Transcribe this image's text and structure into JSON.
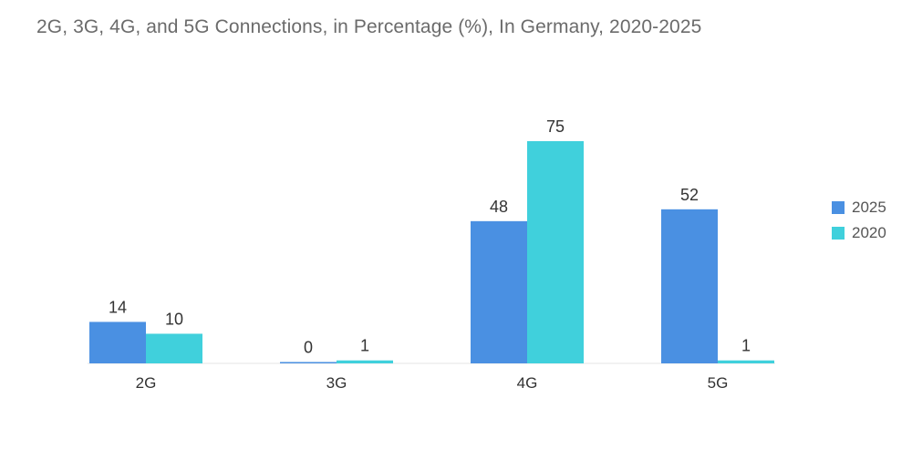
{
  "title": "2G, 3G, 4G, and 5G Connections, in Percentage (%), In Germany, 2020-2025",
  "chart_data": {
    "type": "bar",
    "title": "2G, 3G, 4G, and 5G Connections, in Percentage (%), In Germany, 2020-2025",
    "xlabel": "",
    "ylabel": "",
    "categories": [
      "2G",
      "3G",
      "4G",
      "5G"
    ],
    "series": [
      {
        "name": "2025",
        "values": [
          14,
          0,
          48,
          52
        ],
        "color": "#4a90e2"
      },
      {
        "name": "2020",
        "values": [
          10,
          1,
          75,
          1
        ],
        "color": "#40d0dc"
      }
    ],
    "ylim": [
      0,
      75
    ],
    "grid": false,
    "legend_position": "right"
  }
}
